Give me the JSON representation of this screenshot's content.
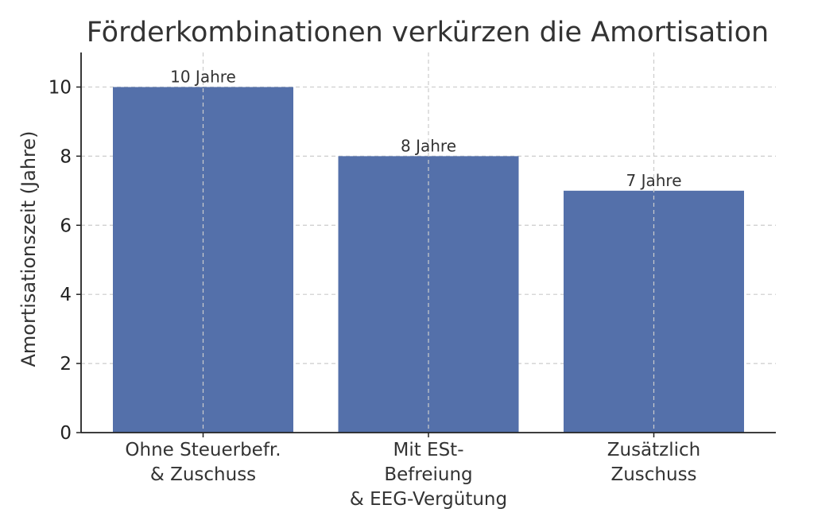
{
  "chart_data": {
    "type": "bar",
    "title": "Förderkombinationen verkürzen die Amortisation",
    "xlabel": "",
    "ylabel": "Amortisationszeit (Jahre)",
    "categories": [
      [
        "Ohne Steuerbefr.",
        "& Zuschuss"
      ],
      [
        "Mit ESt-",
        "Befreiung",
        "& EEG-Vergütung"
      ],
      [
        "Zusätzlich",
        "Zuschuss"
      ]
    ],
    "values": [
      10,
      8,
      7
    ],
    "data_labels": [
      "10 Jahre",
      "8 Jahre",
      "7 Jahre"
    ],
    "ylim": [
      0,
      11
    ],
    "yticks": [
      0,
      2,
      4,
      6,
      8,
      10
    ],
    "grid": true,
    "bar_color": "#5470aa"
  }
}
